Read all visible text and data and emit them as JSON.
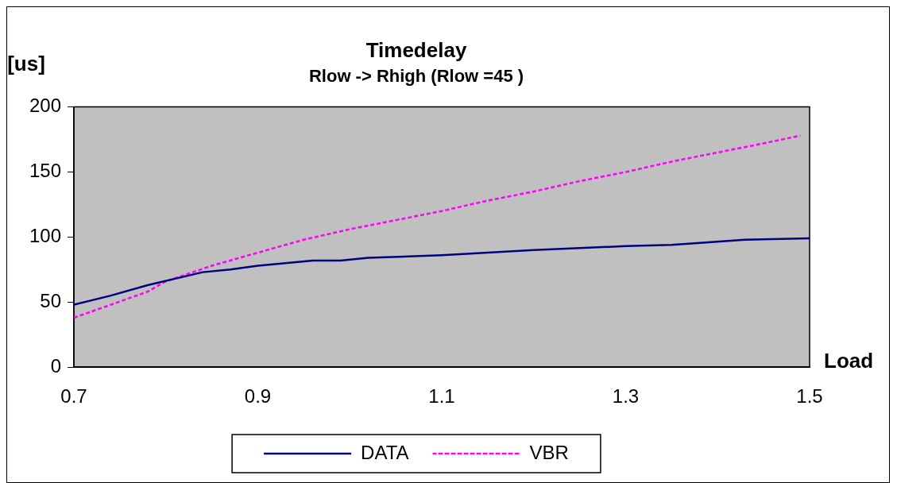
{
  "chart_data": {
    "type": "line",
    "title": "Timedelay",
    "subtitle": "Rlow -> Rhigh (Rlow =45 )",
    "xlabel": "Load",
    "ylabel": "[us]",
    "xlim": [
      0.7,
      1.5
    ],
    "xticks": [
      0.7,
      0.9,
      1.1,
      1.3,
      1.5
    ],
    "ylim": [
      0,
      200
    ],
    "yticks": [
      0,
      50,
      100,
      150,
      200
    ],
    "grid": false,
    "legend": "bottom",
    "marker": "none",
    "series": [
      {
        "name": "DATA",
        "color": "#000080",
        "line_style": "solid",
        "x": [
          0.7,
          0.74,
          0.78,
          0.84,
          0.87,
          0.9,
          0.96,
          0.99,
          1.02,
          1.1,
          1.2,
          1.3,
          1.35,
          1.43,
          1.5
        ],
        "values": [
          48,
          55,
          63,
          73,
          75,
          78,
          82,
          82,
          84,
          86,
          90,
          93,
          94,
          98,
          99
        ]
      },
      {
        "name": "VBR",
        "color": "#ff00ff",
        "line_style": "dashed",
        "x": [
          0.7,
          0.74,
          0.78,
          0.8,
          0.85,
          0.9,
          0.95,
          1.0,
          1.05,
          1.1,
          1.15,
          1.2,
          1.25,
          1.3,
          1.35,
          1.4,
          1.45,
          1.49
        ],
        "values": [
          38,
          48,
          58,
          66,
          78,
          88,
          98,
          106,
          113,
          120,
          128,
          135,
          143,
          150,
          158,
          165,
          172,
          178
        ]
      }
    ]
  }
}
